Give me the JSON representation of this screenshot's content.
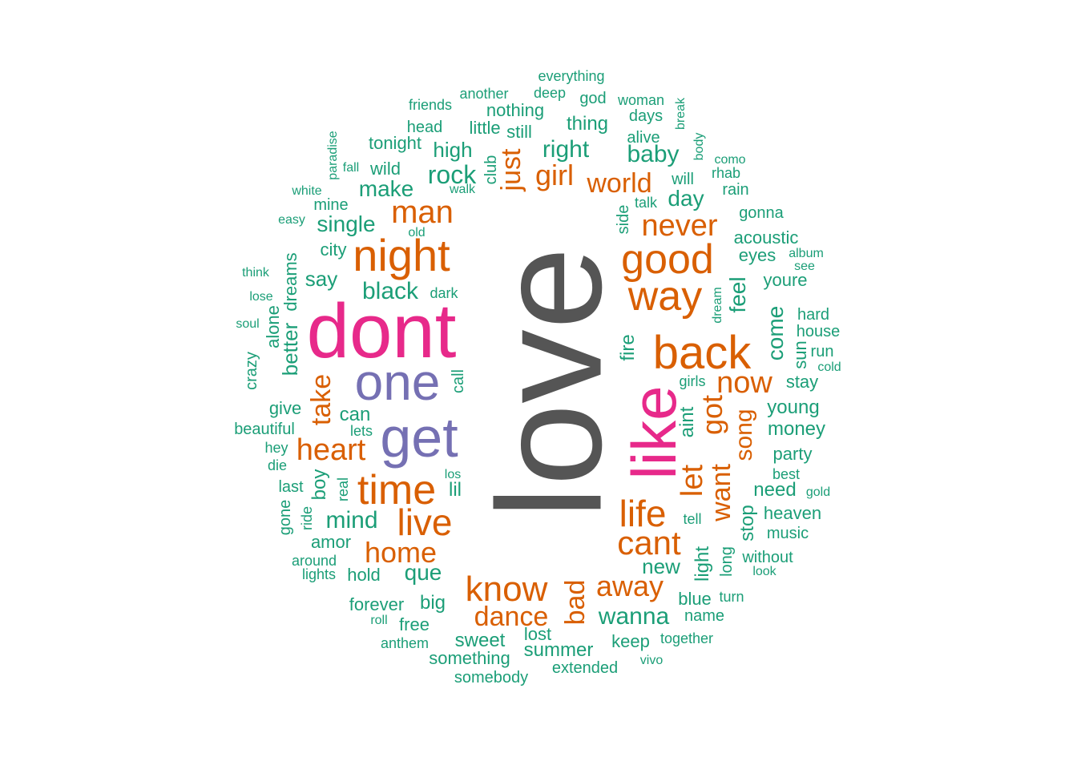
{
  "colors": {
    "teal": "#1b9e77",
    "orange": "#d95f02",
    "purple": "#7570b3",
    "magenta": "#e7298a",
    "gray": "#555555"
  },
  "words": [
    {
      "text": "love",
      "color": "gray",
      "vertical": true
    },
    {
      "text": "dont",
      "color": "magenta",
      "vertical": false
    },
    {
      "text": "like",
      "color": "magenta",
      "vertical": true
    },
    {
      "text": "one",
      "color": "purple",
      "vertical": false
    },
    {
      "text": "get",
      "color": "purple",
      "vertical": false
    },
    {
      "text": "night",
      "color": "orange",
      "vertical": false
    },
    {
      "text": "back",
      "color": "orange",
      "vertical": false
    },
    {
      "text": "good",
      "color": "orange",
      "vertical": false
    },
    {
      "text": "way",
      "color": "orange",
      "vertical": false
    },
    {
      "text": "time",
      "color": "orange",
      "vertical": false
    },
    {
      "text": "life",
      "color": "orange",
      "vertical": false
    },
    {
      "text": "live",
      "color": "orange",
      "vertical": false
    },
    {
      "text": "know",
      "color": "orange",
      "vertical": false
    },
    {
      "text": "cant",
      "color": "orange",
      "vertical": false
    },
    {
      "text": "man",
      "color": "orange",
      "vertical": false
    },
    {
      "text": "heart",
      "color": "orange",
      "vertical": false
    },
    {
      "text": "home",
      "color": "orange",
      "vertical": false
    },
    {
      "text": "dance",
      "color": "orange",
      "vertical": false
    },
    {
      "text": "never",
      "color": "orange",
      "vertical": false
    },
    {
      "text": "now",
      "color": "orange",
      "vertical": false
    },
    {
      "text": "away",
      "color": "orange",
      "vertical": false
    },
    {
      "text": "world",
      "color": "orange",
      "vertical": false
    },
    {
      "text": "girl",
      "color": "orange",
      "vertical": false
    },
    {
      "text": "just",
      "color": "orange",
      "vertical": true
    },
    {
      "text": "take",
      "color": "orange",
      "vertical": true
    },
    {
      "text": "got",
      "color": "orange",
      "vertical": true
    },
    {
      "text": "want",
      "color": "orange",
      "vertical": true
    },
    {
      "text": "let",
      "color": "orange",
      "vertical": true
    },
    {
      "text": "song",
      "color": "orange",
      "vertical": true
    },
    {
      "text": "bad",
      "color": "orange",
      "vertical": true
    },
    {
      "text": "rock",
      "color": "teal",
      "vertical": false
    },
    {
      "text": "right",
      "color": "teal",
      "vertical": false
    },
    {
      "text": "baby",
      "color": "teal",
      "vertical": false
    },
    {
      "text": "make",
      "color": "teal",
      "vertical": false
    },
    {
      "text": "single",
      "color": "teal",
      "vertical": false
    },
    {
      "text": "black",
      "color": "teal",
      "vertical": false
    },
    {
      "text": "say",
      "color": "teal",
      "vertical": false
    },
    {
      "text": "mind",
      "color": "teal",
      "vertical": false
    },
    {
      "text": "que",
      "color": "teal",
      "vertical": false
    },
    {
      "text": "wanna",
      "color": "teal",
      "vertical": false
    },
    {
      "text": "day",
      "color": "teal",
      "vertical": false
    },
    {
      "text": "high",
      "color": "teal",
      "vertical": false
    },
    {
      "text": "feel",
      "color": "teal",
      "vertical": true
    },
    {
      "text": "come",
      "color": "teal",
      "vertical": true
    },
    {
      "text": "better",
      "color": "teal",
      "vertical": true
    },
    {
      "text": "dreams",
      "color": "teal",
      "vertical": true
    },
    {
      "text": "aint",
      "color": "teal",
      "vertical": true
    },
    {
      "text": "light",
      "color": "teal",
      "vertical": true
    },
    {
      "text": "stop",
      "color": "teal",
      "vertical": true
    },
    {
      "text": "boy",
      "color": "teal",
      "vertical": true
    },
    {
      "text": "fire",
      "color": "teal",
      "vertical": true
    },
    {
      "text": "sun",
      "color": "teal",
      "vertical": true
    },
    {
      "text": "side",
      "color": "teal",
      "vertical": true
    },
    {
      "text": "alone",
      "color": "teal",
      "vertical": true
    },
    {
      "text": "club",
      "color": "teal",
      "vertical": true
    },
    {
      "text": "call",
      "color": "teal",
      "vertical": true
    },
    {
      "text": "long",
      "color": "teal",
      "vertical": true
    },
    {
      "text": "crazy",
      "color": "teal",
      "vertical": true
    },
    {
      "text": "gone",
      "color": "teal",
      "vertical": true
    },
    {
      "text": "ride",
      "color": "teal",
      "vertical": true
    },
    {
      "text": "real",
      "color": "teal",
      "vertical": true
    },
    {
      "text": "paradise",
      "color": "teal",
      "vertical": true
    },
    {
      "text": "body",
      "color": "teal",
      "vertical": true
    },
    {
      "text": "break",
      "color": "teal",
      "vertical": true
    },
    {
      "text": "dream",
      "color": "teal",
      "vertical": true
    },
    {
      "text": "everything",
      "color": "teal",
      "vertical": false
    },
    {
      "text": "another",
      "color": "teal",
      "vertical": false
    },
    {
      "text": "deep",
      "color": "teal",
      "vertical": false
    },
    {
      "text": "god",
      "color": "teal",
      "vertical": false
    },
    {
      "text": "woman",
      "color": "teal",
      "vertical": false
    },
    {
      "text": "friends",
      "color": "teal",
      "vertical": false
    },
    {
      "text": "nothing",
      "color": "teal",
      "vertical": false
    },
    {
      "text": "days",
      "color": "teal",
      "vertical": false
    },
    {
      "text": "head",
      "color": "teal",
      "vertical": false
    },
    {
      "text": "little",
      "color": "teal",
      "vertical": false
    },
    {
      "text": "thing",
      "color": "teal",
      "vertical": false
    },
    {
      "text": "still",
      "color": "teal",
      "vertical": false
    },
    {
      "text": "alive",
      "color": "teal",
      "vertical": false
    },
    {
      "text": "tonight",
      "color": "teal",
      "vertical": false
    },
    {
      "text": "como",
      "color": "teal",
      "vertical": false
    },
    {
      "text": "fall",
      "color": "teal",
      "vertical": false
    },
    {
      "text": "wild",
      "color": "teal",
      "vertical": false
    },
    {
      "text": "rhab",
      "color": "teal",
      "vertical": false
    },
    {
      "text": "will",
      "color": "teal",
      "vertical": false
    },
    {
      "text": "white",
      "color": "teal",
      "vertical": false
    },
    {
      "text": "walk",
      "color": "teal",
      "vertical": false
    },
    {
      "text": "rain",
      "color": "teal",
      "vertical": false
    },
    {
      "text": "mine",
      "color": "teal",
      "vertical": false
    },
    {
      "text": "talk",
      "color": "teal",
      "vertical": false
    },
    {
      "text": "gonna",
      "color": "teal",
      "vertical": false
    },
    {
      "text": "easy",
      "color": "teal",
      "vertical": false
    },
    {
      "text": "old",
      "color": "teal",
      "vertical": false
    },
    {
      "text": "acoustic",
      "color": "teal",
      "vertical": false
    },
    {
      "text": "city",
      "color": "teal",
      "vertical": false
    },
    {
      "text": "album",
      "color": "teal",
      "vertical": false
    },
    {
      "text": "eyes",
      "color": "teal",
      "vertical": false
    },
    {
      "text": "think",
      "color": "teal",
      "vertical": false
    },
    {
      "text": "see",
      "color": "teal",
      "vertical": false
    },
    {
      "text": "youre",
      "color": "teal",
      "vertical": false
    },
    {
      "text": "dark",
      "color": "teal",
      "vertical": false
    },
    {
      "text": "lose",
      "color": "teal",
      "vertical": false
    },
    {
      "text": "hard",
      "color": "teal",
      "vertical": false
    },
    {
      "text": "soul",
      "color": "teal",
      "vertical": false
    },
    {
      "text": "house",
      "color": "teal",
      "vertical": false
    },
    {
      "text": "run",
      "color": "teal",
      "vertical": false
    },
    {
      "text": "cold",
      "color": "teal",
      "vertical": false
    },
    {
      "text": "girls",
      "color": "teal",
      "vertical": false
    },
    {
      "text": "stay",
      "color": "teal",
      "vertical": false
    },
    {
      "text": "give",
      "color": "teal",
      "vertical": false
    },
    {
      "text": "young",
      "color": "teal",
      "vertical": false
    },
    {
      "text": "can",
      "color": "teal",
      "vertical": false
    },
    {
      "text": "beautiful",
      "color": "teal",
      "vertical": false
    },
    {
      "text": "lets",
      "color": "teal",
      "vertical": false
    },
    {
      "text": "money",
      "color": "teal",
      "vertical": false
    },
    {
      "text": "hey",
      "color": "teal",
      "vertical": false
    },
    {
      "text": "party",
      "color": "teal",
      "vertical": false
    },
    {
      "text": "die",
      "color": "teal",
      "vertical": false
    },
    {
      "text": "los",
      "color": "teal",
      "vertical": false
    },
    {
      "text": "best",
      "color": "teal",
      "vertical": false
    },
    {
      "text": "last",
      "color": "teal",
      "vertical": false
    },
    {
      "text": "lil",
      "color": "teal",
      "vertical": false
    },
    {
      "text": "need",
      "color": "teal",
      "vertical": false
    },
    {
      "text": "gold",
      "color": "teal",
      "vertical": false
    },
    {
      "text": "heaven",
      "color": "teal",
      "vertical": false
    },
    {
      "text": "tell",
      "color": "teal",
      "vertical": false
    },
    {
      "text": "music",
      "color": "teal",
      "vertical": false
    },
    {
      "text": "amor",
      "color": "teal",
      "vertical": false
    },
    {
      "text": "around",
      "color": "teal",
      "vertical": false
    },
    {
      "text": "without",
      "color": "teal",
      "vertical": false
    },
    {
      "text": "lights",
      "color": "teal",
      "vertical": false
    },
    {
      "text": "hold",
      "color": "teal",
      "vertical": false
    },
    {
      "text": "new",
      "color": "teal",
      "vertical": false
    },
    {
      "text": "look",
      "color": "teal",
      "vertical": false
    },
    {
      "text": "blue",
      "color": "teal",
      "vertical": false
    },
    {
      "text": "turn",
      "color": "teal",
      "vertical": false
    },
    {
      "text": "forever",
      "color": "teal",
      "vertical": false
    },
    {
      "text": "big",
      "color": "teal",
      "vertical": false
    },
    {
      "text": "name",
      "color": "teal",
      "vertical": false
    },
    {
      "text": "roll",
      "color": "teal",
      "vertical": false
    },
    {
      "text": "free",
      "color": "teal",
      "vertical": false
    },
    {
      "text": "lost",
      "color": "teal",
      "vertical": false
    },
    {
      "text": "together",
      "color": "teal",
      "vertical": false
    },
    {
      "text": "sweet",
      "color": "teal",
      "vertical": false
    },
    {
      "text": "keep",
      "color": "teal",
      "vertical": false
    },
    {
      "text": "anthem",
      "color": "teal",
      "vertical": false
    },
    {
      "text": "summer",
      "color": "teal",
      "vertical": false
    },
    {
      "text": "vivo",
      "color": "teal",
      "vertical": false
    },
    {
      "text": "something",
      "color": "teal",
      "vertical": false
    },
    {
      "text": "extended",
      "color": "teal",
      "vertical": false
    },
    {
      "text": "somebody",
      "color": "teal",
      "vertical": false
    }
  ]
}
